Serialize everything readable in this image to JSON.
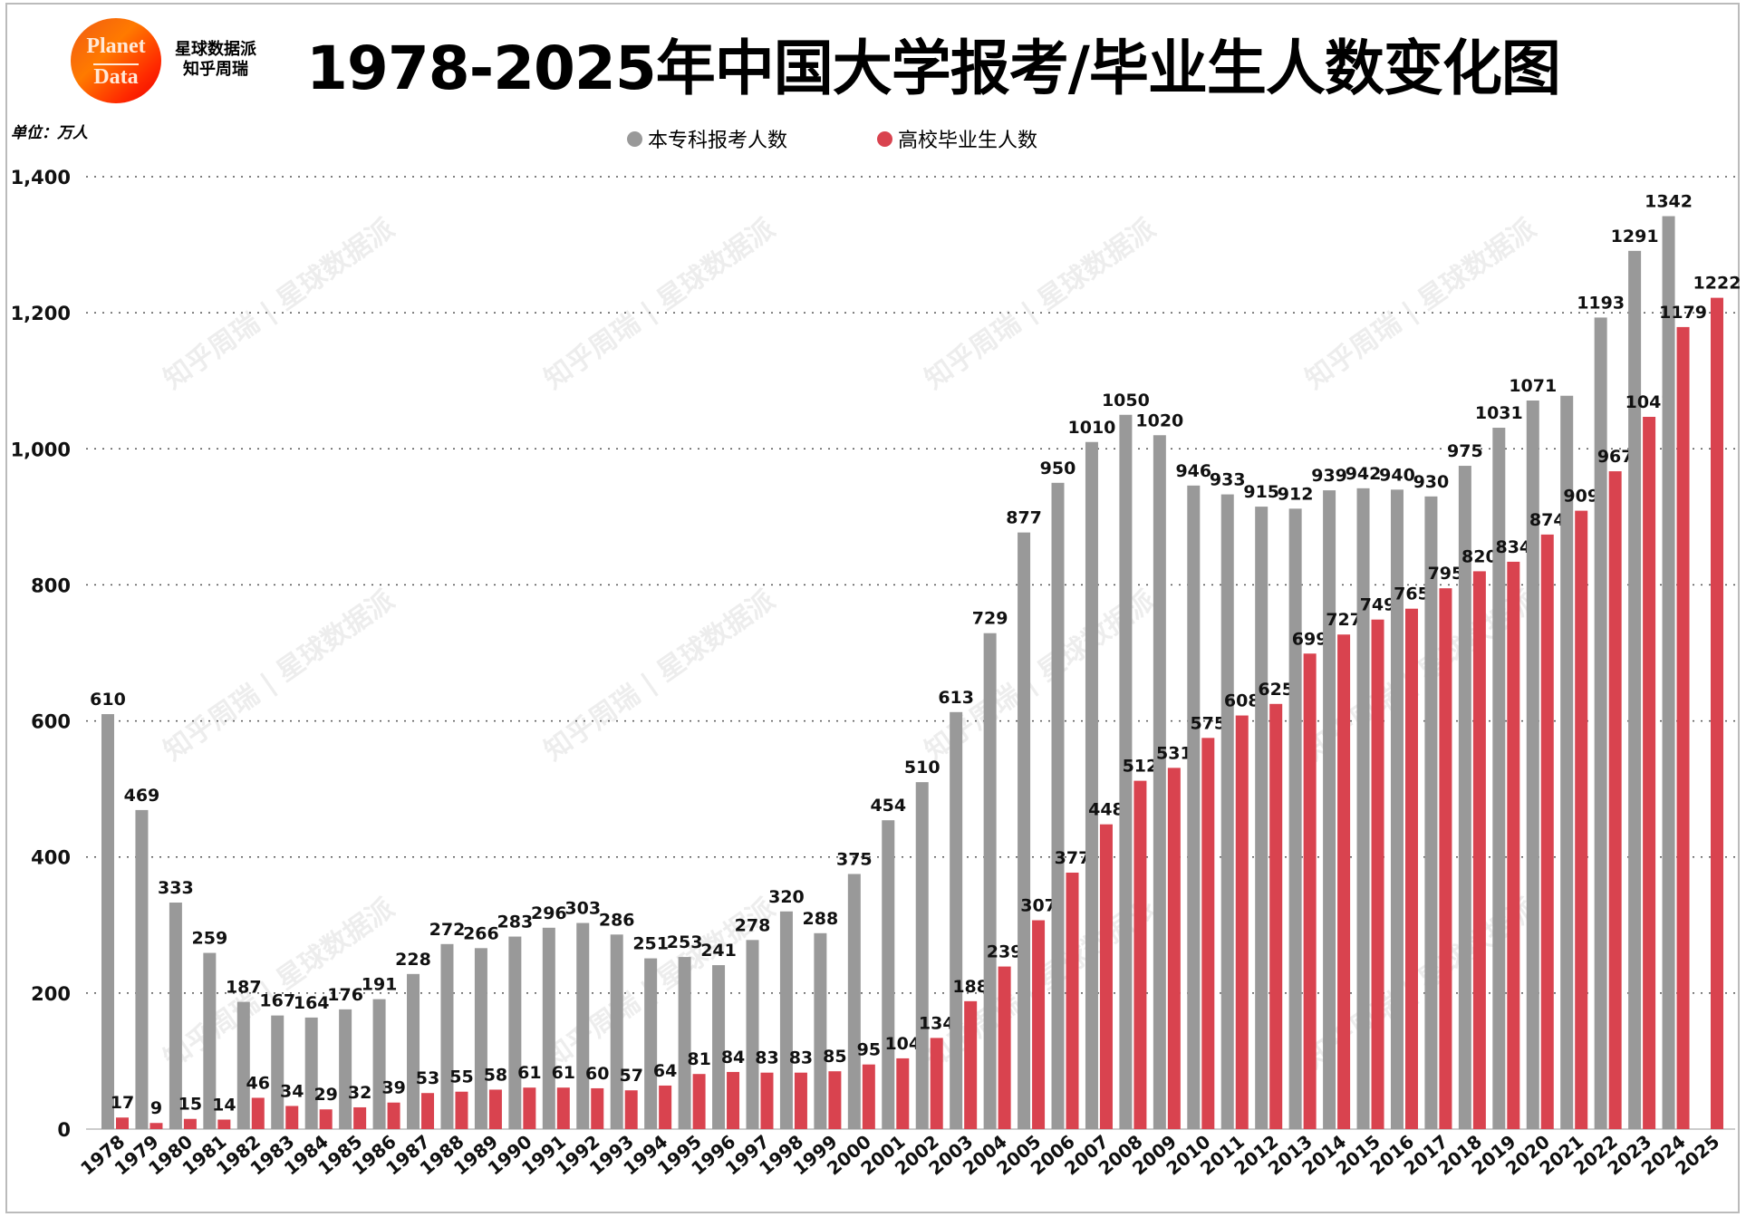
{
  "header": {
    "title": "1978-2025年中国大学报考/毕业生人数变化图",
    "logo_text": [
      "Planet",
      "Data"
    ],
    "brand_lines": [
      "星球数据派",
      "知乎周瑞"
    ],
    "unit": "单位：万人",
    "watermark": "知乎周瑞 | 星球数据派"
  },
  "chart_data": {
    "type": "bar",
    "title": "1978-2025年中国大学报考/毕业生人数变化图",
    "ylabel": "单位：万人",
    "ylim": [
      0,
      1400
    ],
    "yticks": [
      0,
      200,
      400,
      600,
      800,
      1000,
      1200,
      1400
    ],
    "ytick_labels": [
      "0",
      "200",
      "400",
      "600",
      "800",
      "1,000",
      "1,200",
      "1,400"
    ],
    "grid": "horizontal dotted",
    "legend_position": "top-center",
    "categories": [
      "1978",
      "1979",
      "1980",
      "1981",
      "1982",
      "1983",
      "1984",
      "1985",
      "1986",
      "1987",
      "1988",
      "1989",
      "1990",
      "1991",
      "1992",
      "1993",
      "1994",
      "1995",
      "1996",
      "1997",
      "1998",
      "1999",
      "2000",
      "2001",
      "2002",
      "2003",
      "2004",
      "2005",
      "2006",
      "2007",
      "2008",
      "2009",
      "2010",
      "2011",
      "2012",
      "2013",
      "2014",
      "2015",
      "2016",
      "2017",
      "2018",
      "2019",
      "2020",
      "2021",
      "2022",
      "2023",
      "2024",
      "2025"
    ],
    "series": [
      {
        "name": "本专科报考人数",
        "color": "#999999",
        "values": [
          610,
          469,
          333,
          259,
          187,
          167,
          164,
          176,
          191,
          228,
          272,
          266,
          283,
          296,
          303,
          286,
          251,
          253,
          241,
          278,
          320,
          288,
          375,
          454,
          510,
          613,
          729,
          877,
          950,
          1010,
          1050,
          1020,
          946,
          933,
          915,
          912,
          939,
          942,
          940,
          930,
          975,
          1031,
          1071,
          1078,
          1193,
          1291,
          1342,
          null
        ],
        "unlabeled": [
          "2021"
        ]
      },
      {
        "name": "高校毕业生人数",
        "color": "#d9434f",
        "values": [
          17,
          9,
          15,
          14,
          46,
          34,
          29,
          32,
          39,
          53,
          55,
          58,
          61,
          61,
          60,
          57,
          64,
          81,
          84,
          83,
          83,
          85,
          95,
          104,
          134,
          188,
          239,
          307,
          377,
          448,
          512,
          531,
          575,
          608,
          625,
          699,
          727,
          749,
          765,
          795,
          820,
          834,
          874,
          909,
          967,
          1047,
          1179,
          1222
        ],
        "unlabeled": []
      }
    ]
  }
}
